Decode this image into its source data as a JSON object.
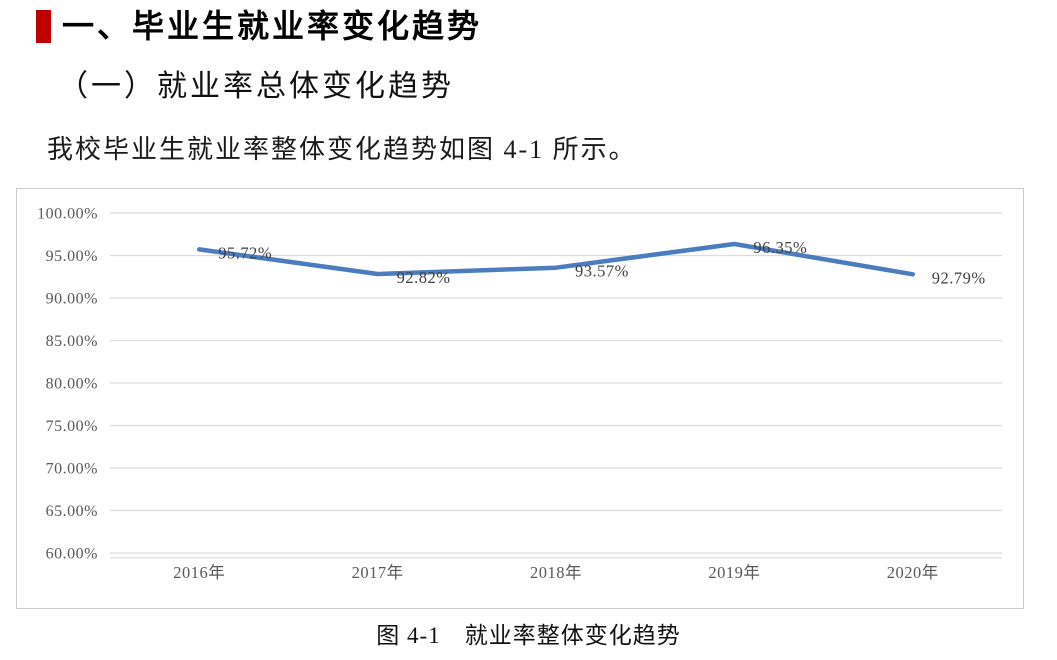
{
  "page": {
    "heading1": "一、毕业生就业率变化趋势",
    "heading2": "（一）就业率总体变化趋势",
    "body_text": "我校毕业生就业率整体变化趋势如图 4-1 所示。",
    "figure_caption": "图 4-1　就业率整体变化趋势",
    "accent_color": "#C00000"
  },
  "chart_data": {
    "type": "line",
    "title": "",
    "xlabel": "",
    "ylabel": "",
    "categories": [
      "2016年",
      "2017年",
      "2018年",
      "2019年",
      "2020年"
    ],
    "values": [
      95.72,
      92.82,
      93.57,
      96.35,
      92.79
    ],
    "point_labels": [
      "95.72%",
      "92.82%",
      "93.57%",
      "96.35%",
      "92.79%"
    ],
    "ylim": [
      60,
      100
    ],
    "ytick_step": 5,
    "ytick_labels": [
      "100.00%",
      "95.00%",
      "90.00%",
      "85.00%",
      "80.00%",
      "75.00%",
      "70.00%",
      "65.00%",
      "60.00%"
    ],
    "grid": true,
    "legend": "none",
    "line_color": "#4A7CBE",
    "gridline_color": "#DCDCDC",
    "frame_color": "#C9CDD1",
    "axis_text_color": "#595959",
    "label_text_color": "#3F3F3F"
  }
}
